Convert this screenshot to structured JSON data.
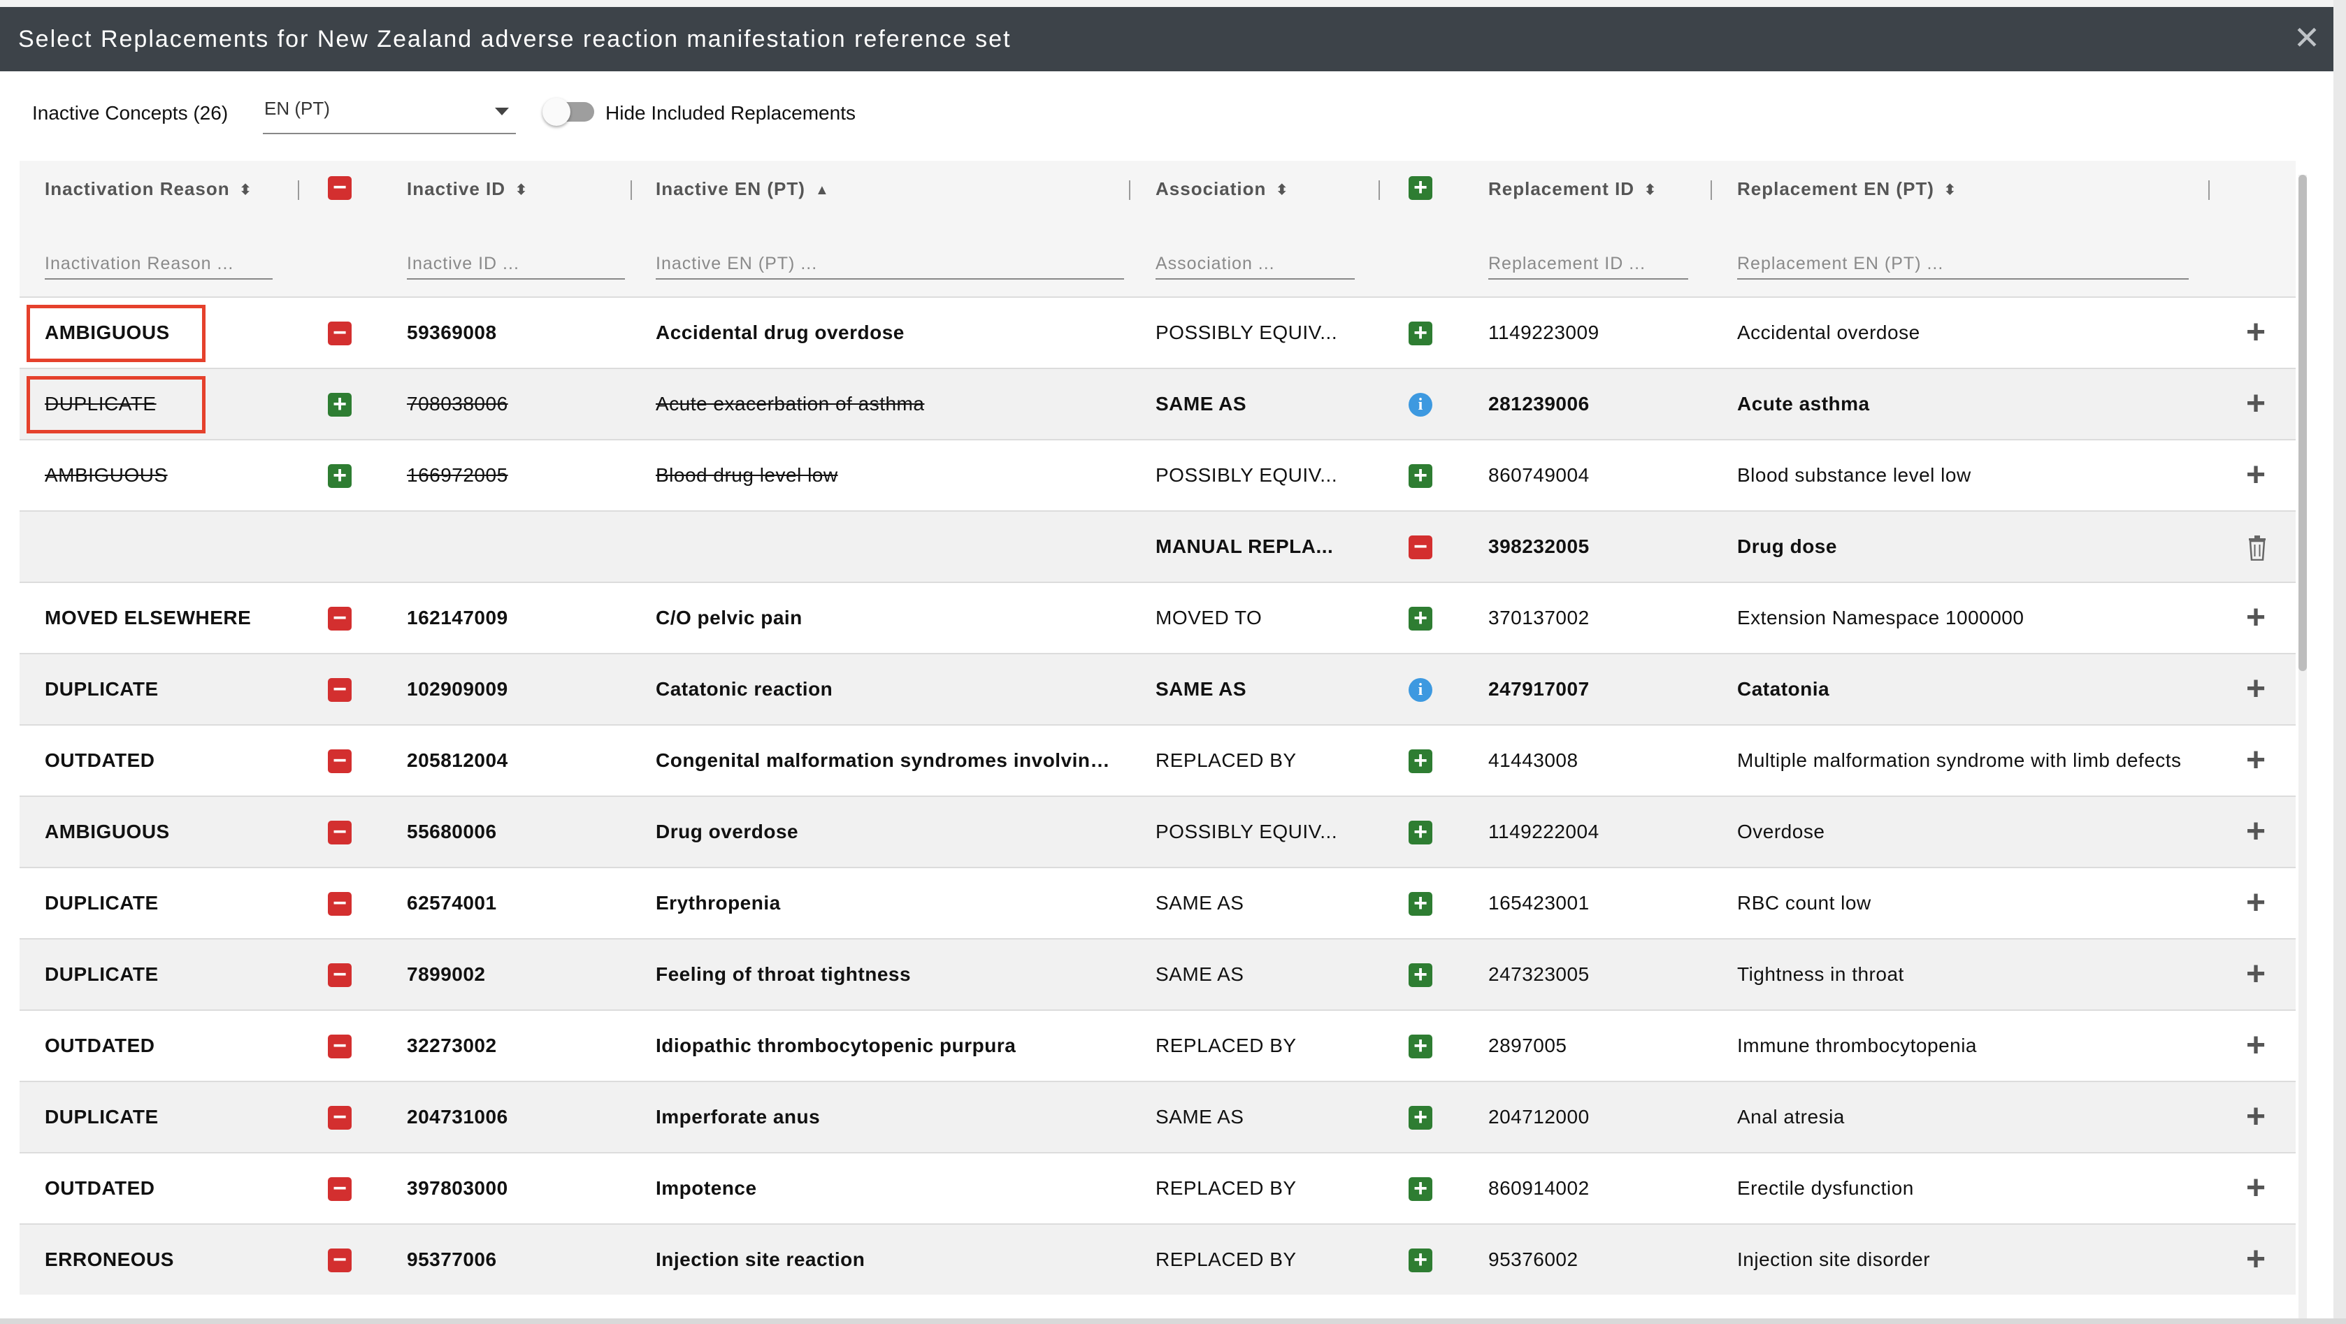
{
  "dialog": {
    "title": "Select Replacements for New Zealand adverse reaction manifestation reference set",
    "close_label": "✕"
  },
  "toolbar": {
    "inactive_concepts": "Inactive Concepts (26)",
    "language": "EN (PT)",
    "hide_included_label": "Hide Included Replacements",
    "hide_included_on": false
  },
  "columns": {
    "reason": "Inactivation Reason",
    "inactive_id": "Inactive ID",
    "inactive_pt": "Inactive EN (PT)",
    "association": "Association",
    "replacement_id": "Replacement ID",
    "replacement_pt": "Replacement EN (PT)"
  },
  "filters": {
    "reason": "Inactivation Reason ...",
    "inactive_id": "Inactive ID ...",
    "inactive_pt": "Inactive EN (PT) ...",
    "association": "Association ...",
    "replacement_id": "Replacement ID ...",
    "replacement_pt": "Replacement EN (PT) ..."
  },
  "colors": {
    "title_bar": "#3d4349",
    "remove": "#d32f2f",
    "add": "#2e7d32",
    "info": "#3d99e0",
    "highlight": "#e5412c"
  },
  "rows": [
    {
      "reason": "AMBIGUOUS",
      "row_icon": "minus",
      "inactive_id": "59369008",
      "inactive_pt": "Accidental drug overdose",
      "association": "POSSIBLY EQUIV...",
      "assoc_icon": "plus",
      "replacement_id": "1149223009",
      "replacement_pt": "Accidental overdose",
      "action": "add",
      "inactive_struck": false,
      "replacement_bold": false,
      "highlighted": true
    },
    {
      "reason": "DUPLICATE",
      "row_icon": "plus",
      "inactive_id": "708038006",
      "inactive_pt": "Acute exacerbation of asthma",
      "association": "SAME AS",
      "assoc_icon": "info",
      "replacement_id": "281239006",
      "replacement_pt": "Acute asthma",
      "action": "add",
      "inactive_struck": true,
      "replacement_bold": true,
      "highlighted": true
    },
    {
      "reason": "AMBIGUOUS",
      "row_icon": "plus",
      "inactive_id": "166972005",
      "inactive_pt": "Blood drug level low",
      "association": "POSSIBLY EQUIV...",
      "assoc_icon": "plus",
      "replacement_id": "860749004",
      "replacement_pt": "Blood substance level low",
      "action": "add",
      "inactive_struck": true,
      "replacement_bold": false,
      "highlighted": false
    },
    {
      "reason": "",
      "row_icon": "none",
      "inactive_id": "",
      "inactive_pt": "",
      "association": "MANUAL REPLA...",
      "assoc_icon": "minus",
      "replacement_id": "398232005",
      "replacement_pt": "Drug dose",
      "action": "delete",
      "inactive_struck": false,
      "replacement_bold": true,
      "highlighted": false
    },
    {
      "reason": "MOVED ELSEWHERE",
      "row_icon": "minus",
      "inactive_id": "162147009",
      "inactive_pt": "C/O pelvic pain",
      "association": "MOVED TO",
      "assoc_icon": "plus",
      "replacement_id": "370137002",
      "replacement_pt": "Extension Namespace 1000000",
      "action": "add",
      "inactive_struck": false,
      "replacement_bold": false,
      "highlighted": false
    },
    {
      "reason": "DUPLICATE",
      "row_icon": "minus",
      "inactive_id": "102909009",
      "inactive_pt": "Catatonic reaction",
      "association": "SAME AS",
      "assoc_icon": "info",
      "replacement_id": "247917007",
      "replacement_pt": "Catatonia",
      "action": "add",
      "inactive_struck": false,
      "replacement_bold": true,
      "highlighted": false
    },
    {
      "reason": "OUTDATED",
      "row_icon": "minus",
      "inactive_id": "205812004",
      "inactive_pt": "Congenital malformation syndromes involving limbs",
      "association": "REPLACED BY",
      "assoc_icon": "plus",
      "replacement_id": "41443008",
      "replacement_pt": "Multiple malformation syndrome with limb defects",
      "action": "add",
      "inactive_struck": false,
      "replacement_bold": false,
      "highlighted": false
    },
    {
      "reason": "AMBIGUOUS",
      "row_icon": "minus",
      "inactive_id": "55680006",
      "inactive_pt": "Drug overdose",
      "association": "POSSIBLY EQUIV...",
      "assoc_icon": "plus",
      "replacement_id": "1149222004",
      "replacement_pt": "Overdose",
      "action": "add",
      "inactive_struck": false,
      "replacement_bold": false,
      "highlighted": false
    },
    {
      "reason": "DUPLICATE",
      "row_icon": "minus",
      "inactive_id": "62574001",
      "inactive_pt": "Erythropenia",
      "association": "SAME AS",
      "assoc_icon": "plus",
      "replacement_id": "165423001",
      "replacement_pt": "RBC count low",
      "action": "add",
      "inactive_struck": false,
      "replacement_bold": false,
      "highlighted": false
    },
    {
      "reason": "DUPLICATE",
      "row_icon": "minus",
      "inactive_id": "7899002",
      "inactive_pt": "Feeling of throat tightness",
      "association": "SAME AS",
      "assoc_icon": "plus",
      "replacement_id": "247323005",
      "replacement_pt": "Tightness in throat",
      "action": "add",
      "inactive_struck": false,
      "replacement_bold": false,
      "highlighted": false
    },
    {
      "reason": "OUTDATED",
      "row_icon": "minus",
      "inactive_id": "32273002",
      "inactive_pt": "Idiopathic thrombocytopenic purpura",
      "association": "REPLACED BY",
      "assoc_icon": "plus",
      "replacement_id": "2897005",
      "replacement_pt": "Immune thrombocytopenia",
      "action": "add",
      "inactive_struck": false,
      "replacement_bold": false,
      "highlighted": false
    },
    {
      "reason": "DUPLICATE",
      "row_icon": "minus",
      "inactive_id": "204731006",
      "inactive_pt": "Imperforate anus",
      "association": "SAME AS",
      "assoc_icon": "plus",
      "replacement_id": "204712000",
      "replacement_pt": "Anal atresia",
      "action": "add",
      "inactive_struck": false,
      "replacement_bold": false,
      "highlighted": false
    },
    {
      "reason": "OUTDATED",
      "row_icon": "minus",
      "inactive_id": "397803000",
      "inactive_pt": "Impotence",
      "association": "REPLACED BY",
      "assoc_icon": "plus",
      "replacement_id": "860914002",
      "replacement_pt": "Erectile dysfunction",
      "action": "add",
      "inactive_struck": false,
      "replacement_bold": false,
      "highlighted": false
    },
    {
      "reason": "ERRONEOUS",
      "row_icon": "minus",
      "inactive_id": "95377006",
      "inactive_pt": "Injection site reaction",
      "association": "REPLACED BY",
      "assoc_icon": "plus",
      "replacement_id": "95376002",
      "replacement_pt": "Injection site disorder",
      "action": "add",
      "inactive_struck": false,
      "replacement_bold": false,
      "highlighted": false
    }
  ]
}
